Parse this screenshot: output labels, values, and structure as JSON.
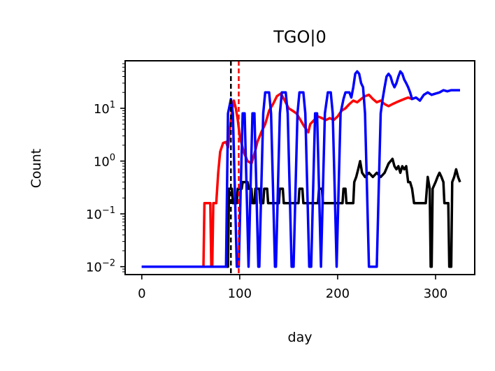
{
  "chart_data": {
    "type": "line",
    "title": "TGO|0",
    "xlabel": "day",
    "ylabel": "Count",
    "xlim": [
      -17,
      340
    ],
    "ylim_log10": [
      -2.15,
      1.9
    ],
    "yscale": "log",
    "grid": false,
    "legend": "none",
    "x_ticks": [
      {
        "value": 0,
        "label": "0"
      },
      {
        "value": 100,
        "label": "100"
      },
      {
        "value": 200,
        "label": "200"
      },
      {
        "value": 300,
        "label": "300"
      }
    ],
    "y_ticks": [
      {
        "exp": -2,
        "base": "10",
        "sup": "−2"
      },
      {
        "exp": -1,
        "base": "10",
        "sup": "−1"
      },
      {
        "exp": 0,
        "base": "10",
        "sup": "0"
      },
      {
        "exp": 1,
        "base": "10",
        "sup": "1"
      }
    ],
    "vlines": [
      {
        "x": 91,
        "color": "#000000"
      },
      {
        "x": 99,
        "color": "#ff0000"
      }
    ],
    "series": [
      {
        "color": "#ff0000",
        "points": [
          [
            0,
            0.01
          ],
          [
            63,
            0.01
          ],
          [
            64,
            0.16
          ],
          [
            70,
            0.16
          ],
          [
            71,
            0.01
          ],
          [
            72,
            0.01
          ],
          [
            73,
            0.16
          ],
          [
            76,
            0.16
          ],
          [
            78,
            0.6
          ],
          [
            80,
            1.5
          ],
          [
            83,
            2.2
          ],
          [
            86,
            2.3
          ],
          [
            88,
            1.8
          ],
          [
            90,
            4
          ],
          [
            92,
            9
          ],
          [
            94,
            14
          ],
          [
            96,
            10
          ],
          [
            98,
            6
          ],
          [
            100,
            3
          ],
          [
            104,
            1.5
          ],
          [
            108,
            1.0
          ],
          [
            112,
            0.9
          ],
          [
            116,
            1.6
          ],
          [
            118,
            2.3
          ],
          [
            122,
            3.5
          ],
          [
            126,
            5
          ],
          [
            130,
            9
          ],
          [
            134,
            12
          ],
          [
            138,
            17
          ],
          [
            142,
            19
          ],
          [
            146,
            14
          ],
          [
            150,
            10
          ],
          [
            154,
            9
          ],
          [
            158,
            8
          ],
          [
            162,
            6
          ],
          [
            166,
            4.5
          ],
          [
            170,
            3.5
          ],
          [
            172,
            5
          ],
          [
            176,
            6
          ],
          [
            180,
            7
          ],
          [
            184,
            6.5
          ],
          [
            188,
            6
          ],
          [
            192,
            6.5
          ],
          [
            196,
            6
          ],
          [
            200,
            7
          ],
          [
            204,
            9
          ],
          [
            208,
            10
          ],
          [
            212,
            12
          ],
          [
            216,
            14
          ],
          [
            220,
            13
          ],
          [
            224,
            15
          ],
          [
            228,
            17
          ],
          [
            232,
            18
          ],
          [
            236,
            15
          ],
          [
            240,
            13
          ],
          [
            244,
            14
          ],
          [
            248,
            12
          ],
          [
            252,
            11
          ],
          [
            256,
            12
          ],
          [
            260,
            13
          ],
          [
            264,
            14
          ],
          [
            268,
            15
          ],
          [
            272,
            16
          ],
          [
            276,
            15
          ]
        ]
      },
      {
        "color": "#000000",
        "points": [
          [
            0,
            0.01
          ],
          [
            88,
            0.01
          ],
          [
            89,
            0.3
          ],
          [
            92,
            0.3
          ],
          [
            93,
            0.16
          ],
          [
            97,
            0.16
          ],
          [
            98,
            0.3
          ],
          [
            102,
            0.3
          ],
          [
            103,
            0.4
          ],
          [
            108,
            0.4
          ],
          [
            109,
            0.3
          ],
          [
            112,
            0.3
          ],
          [
            113,
            0.16
          ],
          [
            115,
            0.16
          ],
          [
            116,
            0.3
          ],
          [
            120,
            0.3
          ],
          [
            121,
            0.16
          ],
          [
            124,
            0.16
          ],
          [
            125,
            0.3
          ],
          [
            128,
            0.3
          ],
          [
            129,
            0.16
          ],
          [
            140,
            0.16
          ],
          [
            141,
            0.3
          ],
          [
            144,
            0.3
          ],
          [
            145,
            0.16
          ],
          [
            160,
            0.16
          ],
          [
            161,
            0.3
          ],
          [
            164,
            0.3
          ],
          [
            165,
            0.16
          ],
          [
            180,
            0.16
          ],
          [
            181,
            0.3
          ],
          [
            184,
            0.3
          ],
          [
            185,
            0.16
          ],
          [
            205,
            0.16
          ],
          [
            206,
            0.3
          ],
          [
            208,
            0.3
          ],
          [
            209,
            0.16
          ],
          [
            216,
            0.16
          ],
          [
            217,
            0.4
          ],
          [
            219,
            0.5
          ],
          [
            221,
            0.7
          ],
          [
            223,
            1.0
          ],
          [
            225,
            0.6
          ],
          [
            228,
            0.5
          ],
          [
            232,
            0.6
          ],
          [
            236,
            0.5
          ],
          [
            240,
            0.6
          ],
          [
            244,
            0.5
          ],
          [
            248,
            0.6
          ],
          [
            252,
            0.9
          ],
          [
            256,
            1.1
          ],
          [
            258,
            0.8
          ],
          [
            260,
            0.7
          ],
          [
            262,
            0.8
          ],
          [
            264,
            0.6
          ],
          [
            266,
            0.8
          ],
          [
            268,
            0.7
          ],
          [
            270,
            0.8
          ],
          [
            272,
            0.4
          ],
          [
            274,
            0.4
          ],
          [
            276,
            0.3
          ],
          [
            278,
            0.16
          ],
          [
            290,
            0.16
          ],
          [
            292,
            0.5
          ],
          [
            294,
            0.3
          ],
          [
            295,
            0.01
          ],
          [
            296,
            0.01
          ],
          [
            297,
            0.3
          ],
          [
            300,
            0.4
          ],
          [
            302,
            0.5
          ],
          [
            304,
            0.6
          ],
          [
            306,
            0.5
          ],
          [
            308,
            0.4
          ],
          [
            309,
            0.16
          ],
          [
            313,
            0.16
          ],
          [
            314,
            0.01
          ],
          [
            316,
            0.01
          ],
          [
            317,
            0.4
          ],
          [
            319,
            0.5
          ],
          [
            321,
            0.7
          ],
          [
            323,
            0.5
          ],
          [
            325,
            0.4
          ]
        ]
      },
      {
        "color": "#0000ff",
        "points": [
          [
            0,
            0.01
          ],
          [
            86,
            0.01
          ],
          [
            88,
            8
          ],
          [
            91,
            15
          ],
          [
            93,
            8
          ],
          [
            95,
            0.3
          ],
          [
            97,
            0.01
          ],
          [
            99,
            0.01
          ],
          [
            101,
            0.3
          ],
          [
            103,
            8
          ],
          [
            105,
            8
          ],
          [
            107,
            0.3
          ],
          [
            109,
            0.01
          ],
          [
            111,
            0.3
          ],
          [
            113,
            8
          ],
          [
            115,
            8
          ],
          [
            117,
            0.3
          ],
          [
            119,
            0.01
          ],
          [
            120,
            0.01
          ],
          [
            122,
            0.3
          ],
          [
            124,
            8
          ],
          [
            126,
            20
          ],
          [
            130,
            20
          ],
          [
            132,
            8
          ],
          [
            134,
            0.3
          ],
          [
            136,
            0.01
          ],
          [
            137,
            0.01
          ],
          [
            139,
            0.3
          ],
          [
            141,
            8
          ],
          [
            143,
            20
          ],
          [
            147,
            20
          ],
          [
            149,
            8
          ],
          [
            151,
            0.3
          ],
          [
            153,
            0.01
          ],
          [
            155,
            0.01
          ],
          [
            157,
            0.3
          ],
          [
            159,
            8
          ],
          [
            161,
            20
          ],
          [
            165,
            20
          ],
          [
            167,
            8
          ],
          [
            169,
            0.3
          ],
          [
            171,
            0.01
          ],
          [
            173,
            0.01
          ],
          [
            175,
            0.3
          ],
          [
            177,
            8
          ],
          [
            179,
            8
          ],
          [
            181,
            0.3
          ],
          [
            183,
            0.01
          ],
          [
            185,
            0.3
          ],
          [
            187,
            8
          ],
          [
            190,
            20
          ],
          [
            193,
            20
          ],
          [
            195,
            8
          ],
          [
            197,
            0.3
          ],
          [
            199,
            0.01
          ],
          [
            201,
            0.3
          ],
          [
            203,
            8
          ],
          [
            206,
            15
          ],
          [
            208,
            20
          ],
          [
            212,
            20
          ],
          [
            214,
            16
          ],
          [
            216,
            25
          ],
          [
            218,
            45
          ],
          [
            220,
            50
          ],
          [
            222,
            45
          ],
          [
            224,
            30
          ],
          [
            226,
            25
          ],
          [
            228,
            8
          ],
          [
            230,
            0.3
          ],
          [
            232,
            0.01
          ],
          [
            240,
            0.01
          ],
          [
            242,
            0.3
          ],
          [
            244,
            8
          ],
          [
            246,
            15
          ],
          [
            248,
            25
          ],
          [
            250,
            40
          ],
          [
            252,
            45
          ],
          [
            254,
            40
          ],
          [
            256,
            30
          ],
          [
            258,
            25
          ],
          [
            260,
            30
          ],
          [
            262,
            40
          ],
          [
            264,
            50
          ],
          [
            266,
            45
          ],
          [
            268,
            35
          ],
          [
            270,
            30
          ],
          [
            272,
            25
          ],
          [
            274,
            20
          ],
          [
            276,
            15
          ],
          [
            280,
            16
          ],
          [
            284,
            14
          ],
          [
            288,
            18
          ],
          [
            292,
            20
          ],
          [
            296,
            18
          ],
          [
            300,
            19
          ],
          [
            304,
            20
          ],
          [
            308,
            22
          ],
          [
            312,
            21
          ],
          [
            316,
            22
          ],
          [
            320,
            22
          ],
          [
            325,
            22
          ]
        ]
      }
    ]
  }
}
